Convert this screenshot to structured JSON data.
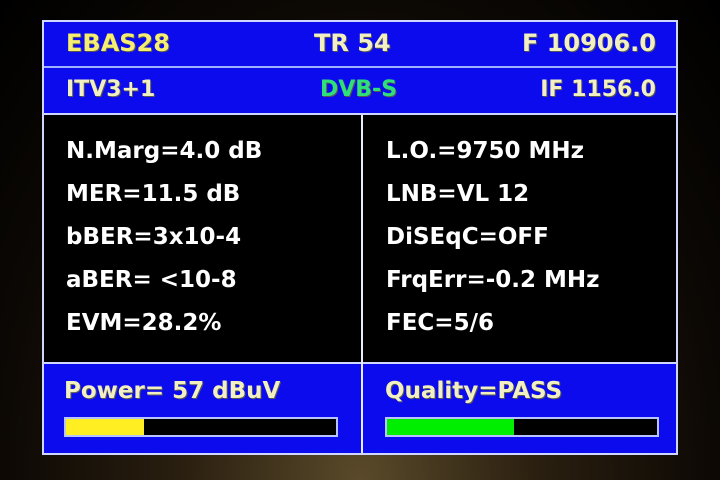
{
  "header": {
    "satellite": "EBAS28",
    "transponder": "TR 54",
    "frequency": "F 10906.0"
  },
  "subheader": {
    "channel": "ITV3+1",
    "standard": "DVB-S",
    "if": "IF 1156.0"
  },
  "left_items": [
    "N.Marg=4.0 dB",
    "MER=11.5 dB",
    "bBER=3x10-4",
    "aBER= <10-8",
    "EVM=28.2%"
  ],
  "right_items": [
    "L.O.=9750 MHz",
    "LNB=VL 12",
    "DiSEqC=OFF",
    "FrqErr=-0.2 MHz",
    "FEC=5/6"
  ],
  "power": {
    "label": "Power= 57 dBuV",
    "level_percent": 29,
    "color": "#ffee22"
  },
  "quality": {
    "label": "Quality=PASS",
    "level_percent": 47,
    "color": "#00ee00"
  },
  "colors": {
    "panel": "#0b0bee",
    "background": "#000000"
  }
}
